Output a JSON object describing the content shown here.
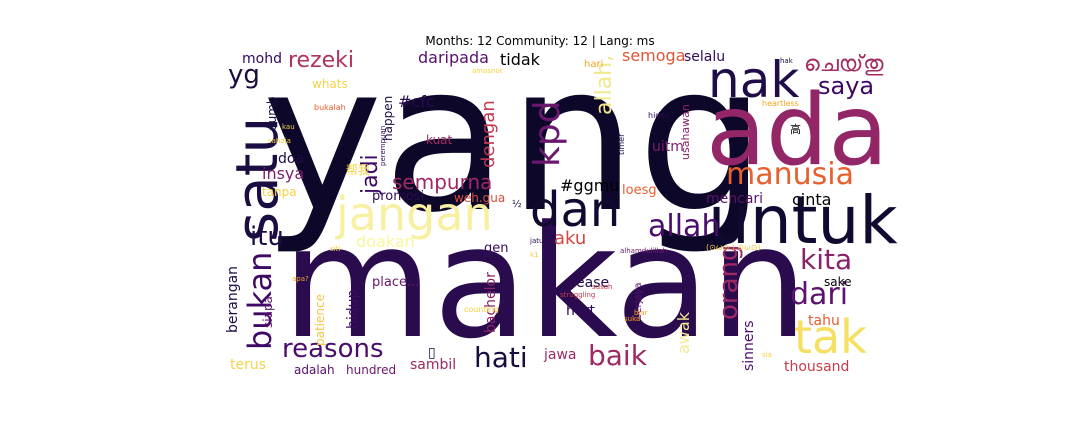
{
  "title": "Months: 12 Community: 12 | Lang: ms",
  "words": [
    {
      "text": "yang",
      "color": "#0d0829"
    },
    {
      "text": "makan",
      "color": "#2a0c4e"
    },
    {
      "text": "ada",
      "color": "#932667"
    },
    {
      "text": "untuk",
      "color": "#0f0a2f"
    },
    {
      "text": "dan",
      "color": "#110a30"
    },
    {
      "text": "satu",
      "color": "#1b0c41"
    },
    {
      "text": "nak",
      "color": "#1f0c48"
    },
    {
      "text": "tak",
      "color": "#f5e061"
    },
    {
      "text": "jangan",
      "color": "#f7f0a0"
    },
    {
      "text": "manusia",
      "color": "#e8602d"
    },
    {
      "text": "allah",
      "color": "#4b0c6b"
    },
    {
      "text": "kpd",
      "color": "#6a176e"
    },
    {
      "text": "bukan",
      "color": "#3d0965"
    },
    {
      "text": "reasons",
      "color": "#4c0c6b"
    },
    {
      "text": "dari",
      "color": "#5c126e"
    },
    {
      "text": "kita",
      "color": "#8a226a"
    },
    {
      "text": "hati",
      "color": "#190c3e"
    },
    {
      "text": "baik",
      "color": "#a02a63"
    },
    {
      "text": "itu",
      "color": "#1e0c45"
    },
    {
      "text": "saya",
      "color": "#3b0964"
    },
    {
      "text": "yg",
      "color": "#1b0c41"
    },
    {
      "text": "orang",
      "color": "#9b2964"
    },
    {
      "text": "rezeki",
      "color": "#b1325a"
    },
    {
      "text": "jadi",
      "color": "#3b0964"
    },
    {
      "text": "sempurna",
      "color": "#9e2964"
    },
    {
      "text": "dengan",
      "color": "#c03a51"
    },
    {
      "text": "allah,",
      "color": "#f1e889"
    },
    {
      "text": "cinta",
      "color": "#000004"
    },
    {
      "text": "aku",
      "color": "#d24644"
    },
    {
      "text": "semoga",
      "color": "#e05536"
    },
    {
      "text": "#ggmu",
      "color": "#000004"
    },
    {
      "text": "awak",
      "color": "#f2ea91"
    },
    {
      "text": "daripada",
      "color": "#57106e"
    },
    {
      "text": "mencari",
      "color": "#5d126e"
    },
    {
      "text": "insya",
      "color": "#7b1d6c"
    },
    {
      "text": "doakan",
      "color": "#f7f79e"
    },
    {
      "text": "tidak",
      "color": "#000004"
    },
    {
      "text": "selalu",
      "color": "#310a5c"
    },
    {
      "text": "mohd",
      "color": "#320a5e"
    },
    {
      "text": "#cfc",
      "color": "#280b53"
    },
    {
      "text": "uitm",
      "color": "#7c1d6c"
    },
    {
      "text": "hidup",
      "color": "#400a67"
    },
    {
      "text": "promosi",
      "color": "#2c0b55"
    },
    {
      "text": "sambil",
      "color": "#9b2964"
    },
    {
      "text": "doa",
      "color": "#1f0c48"
    },
    {
      "text": "jawa",
      "color": "#a02a63"
    },
    {
      "text": "berangan",
      "color": "#1e0c45"
    },
    {
      "text": "terus",
      "color": "#f3d44b"
    },
    {
      "text": "thousand",
      "color": "#c43c4e"
    },
    {
      "text": "tahu",
      "color": "#e55c30"
    },
    {
      "text": "sinners",
      "color": "#4b0c6b"
    },
    {
      "text": "ease",
      "color": "#1f0c48"
    },
    {
      "text": "bachelor",
      "color": "#8d2369"
    },
    {
      "text": "hurt",
      "color": "#2f0a5b"
    },
    {
      "text": "loesg",
      "color": "#e8602d"
    },
    {
      "text": "sake",
      "color": "#000004"
    },
    {
      "text": "gen",
      "color": "#37095f"
    },
    {
      "text": "place...",
      "color": "#6a176e"
    },
    {
      "text": "siapa",
      "color": "#5f136e"
    },
    {
      "text": "patience",
      "color": "#f6c745"
    },
    {
      "text": "adalah",
      "color": "#550f6d"
    },
    {
      "text": "hundred",
      "color": "#6a176e"
    },
    {
      "text": "happen",
      "color": "#1b0c41"
    },
    {
      "text": "dumb",
      "color": "#1a0c40"
    },
    {
      "text": "whats",
      "color": "#f5d547"
    },
    {
      "text": "kuat",
      "color": "#a52c60"
    },
    {
      "text": "usahawan",
      "color": "#8a226a"
    },
    {
      "text": "tanpa",
      "color": "#f8d13e"
    },
    {
      "text": "weh.gua",
      "color": "#d84f3b"
    },
    {
      "text": "berjaya",
      "color": "#5b116e"
    },
    {
      "text": "hari",
      "color": "#f1a51c"
    },
    {
      "text": "ചെയ്‌തു",
      "color": "#a52c60"
    },
    {
      "text": "帮我",
      "color": "#f8d13e"
    },
    {
      "text": "高",
      "color": "#000004"
    },
    {
      "text": "½",
      "color": "#1a0c40"
    },
    {
      "text": "▯",
      "color": "#1a0c40"
    },
    {
      "text": "timer",
      "color": "#1e0c45"
    },
    {
      "text": "hides",
      "color": "#2c0b55"
    },
    {
      "text": "heartless",
      "color": "#f6a81d"
    },
    {
      "text": "bukalah",
      "color": "#e8602d"
    },
    {
      "text": "kau",
      "color": "#f8d13e"
    },
    {
      "text": "sahaja",
      "color": "#f8d13e"
    },
    {
      "text": "perempuan",
      "color": "#320a5e"
    },
    {
      "text": "alhamdulillah",
      "color": "#6a176e"
    },
    {
      "text": "jatuh",
      "color": "#2c0b55"
    },
    {
      "text": "siti",
      "color": "#f8d13e"
    },
    {
      "text": "counting",
      "color": "#f8d13e"
    },
    {
      "text": "struggling",
      "color": "#c43c4e"
    },
    {
      "text": "susah",
      "color": "#c43c4e"
    },
    {
      "text": "biar",
      "color": "#f6a81d"
    },
    {
      "text": "suka",
      "color": "#f6a81d"
    },
    {
      "text": "sia",
      "color": "#f8d13e"
    },
    {
      "text": "apa?",
      "color": "#f1a51c"
    },
    {
      "text": "k1",
      "color": "#f6c745"
    },
    {
      "text": "(⊙ω⊙ ) ⊙ω⊙)",
      "color": "#f6c745"
    },
    {
      "text": "hak",
      "color": "#1b0c41"
    },
    {
      "text": "amosnot",
      "color": "#f8d13e"
    }
  ]
}
